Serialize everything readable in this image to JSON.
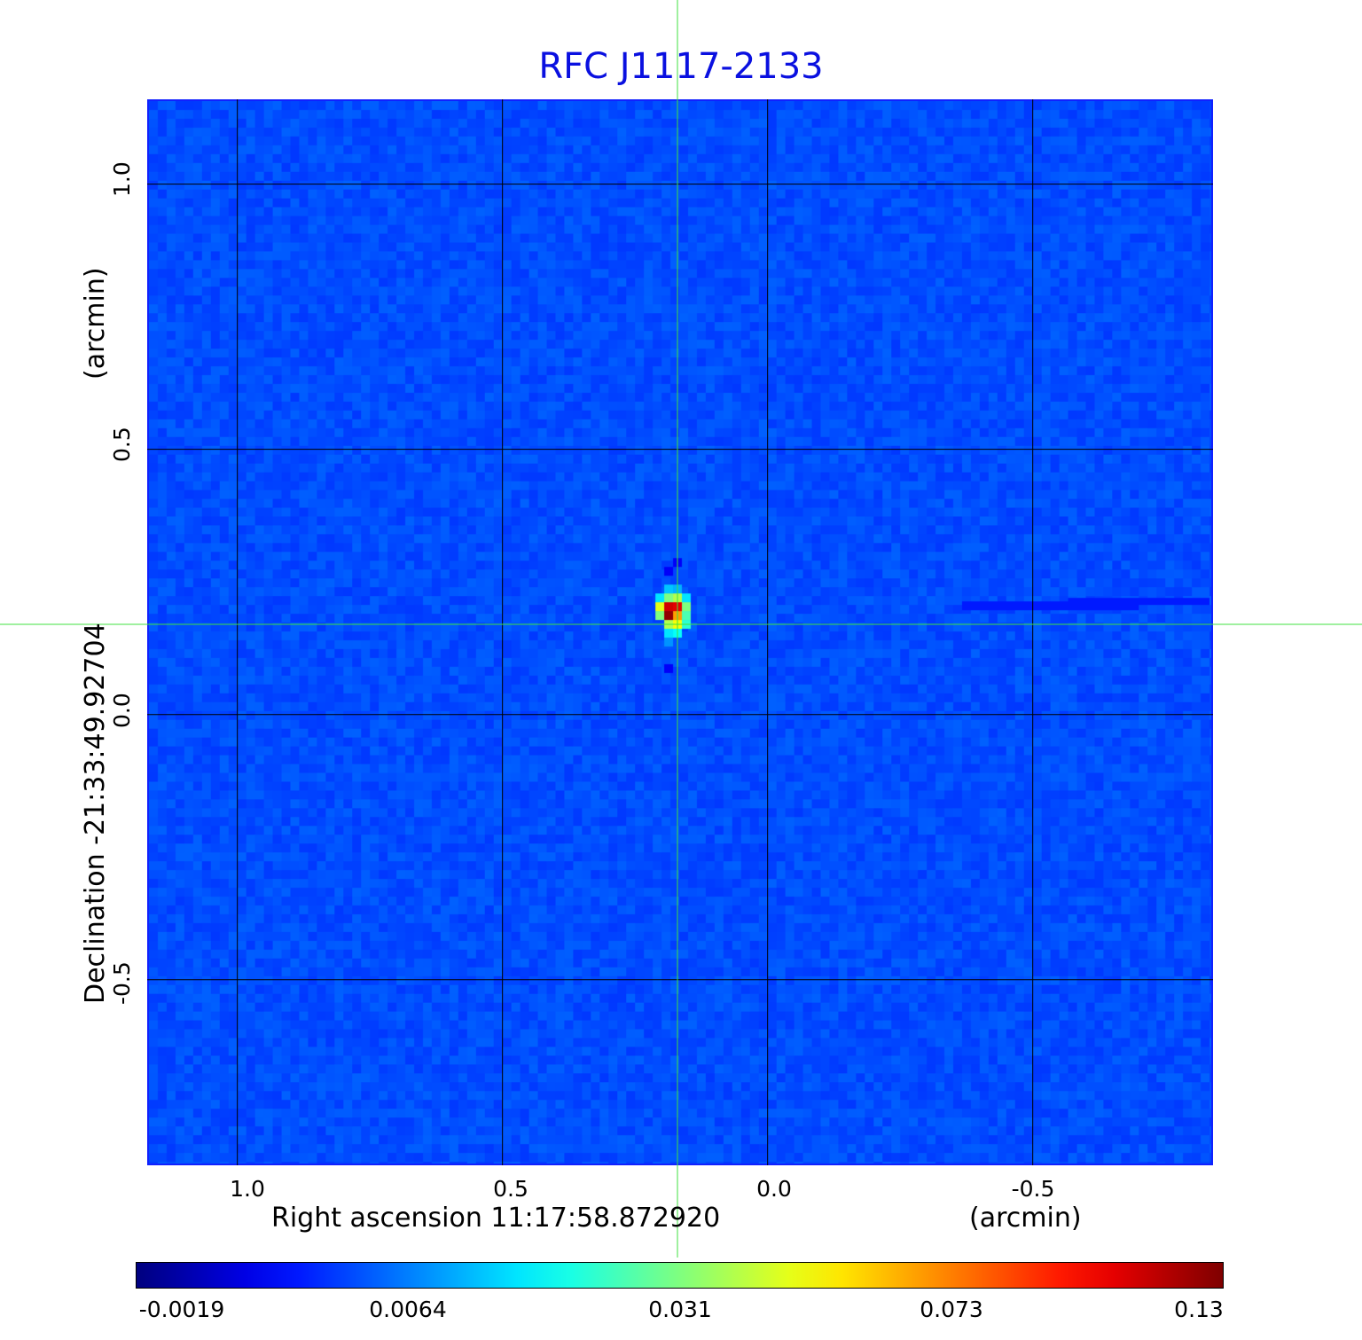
{
  "chart_data": {
    "type": "heatmap",
    "title": "RFC J1117-2133",
    "xlabel": "Right ascension  11:17:58.872920",
    "xunit": "(arcmin)",
    "ylabel": "Declination  -21:33:49.92704",
    "yunit": "(arcmin)",
    "xlim": [
      1.17,
      -0.84
    ],
    "ylim": [
      -0.85,
      1.16
    ],
    "x_ticks": [
      "1.0",
      "0.5",
      "0.0",
      "-0.5"
    ],
    "x_tick_values": [
      1.0,
      0.5,
      0.0,
      -0.5
    ],
    "y_ticks": [
      "1.0",
      "0.5",
      "0.0",
      "-0.5"
    ],
    "y_tick_values": [
      1.0,
      0.5,
      0.0,
      -0.5
    ],
    "grid": true,
    "grid_color": "#000000",
    "crosshair": {
      "x": 0.17,
      "y": 0.17,
      "color": "#40e040"
    },
    "peak": {
      "x": 0.17,
      "y": 0.17,
      "value": 0.13
    },
    "colormap": "jet",
    "background_color": "#1846f0",
    "colorbar": {
      "ticks": [
        "-0.0019",
        "0.0064",
        "0.031",
        "0.073",
        "0.13"
      ],
      "tick_values": [
        -0.0019,
        0.0064,
        0.031,
        0.073,
        0.13
      ],
      "placement": "bottom"
    }
  }
}
